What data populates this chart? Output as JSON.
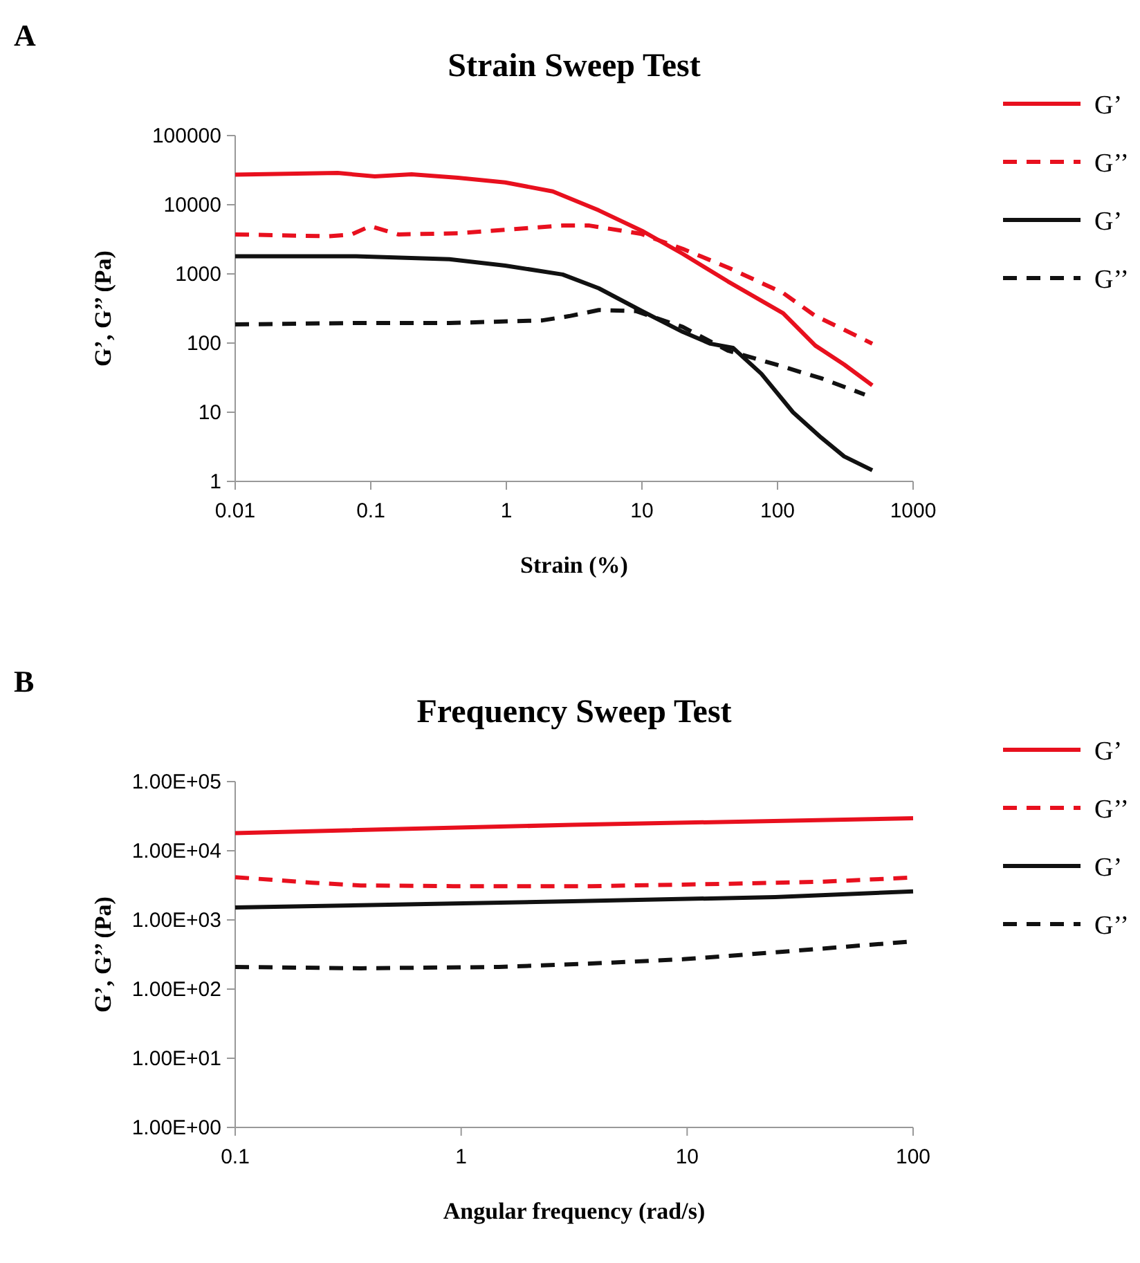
{
  "chart_data": [
    {
      "type": "line",
      "title": "Strain Sweep Test",
      "xlabel": "Strain (%)",
      "ylabel": "G’, G’’ (Pa)",
      "annotations": [
        "A"
      ],
      "log": "xy",
      "legend": "right",
      "grid": false,
      "xlim": [
        0.01,
        1000
      ],
      "xticks": [
        0.01,
        0.1,
        1,
        10,
        100,
        1000
      ],
      "ylim": [
        1,
        100000
      ],
      "yticks": [
        1,
        10,
        100,
        1000,
        10000,
        100000
      ],
      "series": [
        {
          "name": "G’",
          "color": "#e8101e",
          "line_style": "solid",
          "x": [
            0.01,
            0.057,
            0.107,
            0.2,
            0.44,
            0.98,
            2.2,
            4.8,
            10,
            20,
            43,
            110,
            190,
            310,
            500
          ],
          "values": [
            27200,
            28800,
            25700,
            27500,
            24500,
            21000,
            15600,
            8300,
            4200,
            1950,
            780,
            270,
            92,
            49,
            24.5
          ]
        },
        {
          "name": "G’’",
          "color": "#e8101e",
          "line_style": "dashed",
          "x": [
            0.01,
            0.049,
            0.072,
            0.099,
            0.16,
            0.44,
            0.98,
            2.6,
            4.1,
            9.8,
            20,
            43,
            110,
            190,
            310,
            500
          ],
          "values": [
            3720,
            3500,
            3720,
            4900,
            3720,
            3870,
            4340,
            5000,
            5000,
            3800,
            2300,
            1240,
            530,
            247,
            156,
            98
          ]
        },
        {
          "name": "G’",
          "color": "#111111",
          "line_style": "solid",
          "x": [
            0.01,
            0.078,
            0.38,
            0.98,
            2.6,
            4.8,
            10,
            20,
            32,
            47,
            76,
            130,
            210,
            310,
            500
          ],
          "values": [
            1800,
            1800,
            1630,
            1320,
            980,
            620,
            290,
            145,
            98,
            85,
            36,
            10,
            4.3,
            2.3,
            1.45
          ]
        },
        {
          "name": "G’’",
          "color": "#111111",
          "line_style": "dashed",
          "x": [
            0.01,
            0.078,
            0.38,
            1.85,
            2.9,
            4.8,
            9,
            20,
            43,
            97,
            210,
            440
          ],
          "values": [
            186,
            195,
            195,
            213,
            245,
            300,
            290,
            171,
            78,
            49,
            31,
            18
          ]
        }
      ]
    },
    {
      "type": "line",
      "title": "Frequency Sweep Test",
      "xlabel": "Angular frequency (rad/s)",
      "ylabel": "G’, G’’ (Pa)",
      "annotations": [
        "B"
      ],
      "log": "xy",
      "legend": "right",
      "grid": false,
      "xlim": [
        0.1,
        100
      ],
      "xticks": [
        0.1,
        1,
        10,
        100
      ],
      "ylim": [
        1,
        100000
      ],
      "yticks": [
        {
          "value": 1,
          "label": "1.00E+00"
        },
        {
          "value": 10,
          "label": "1.00E+01"
        },
        {
          "value": 100,
          "label": "1.00E+02"
        },
        {
          "value": 1000,
          "label": "1.00E+03"
        },
        {
          "value": 10000,
          "label": "1.00E+04"
        },
        {
          "value": 100000,
          "label": "1.00E+05"
        }
      ],
      "series": [
        {
          "name": "G’",
          "color": "#e8101e",
          "line_style": "solid",
          "x": [
            0.1,
            3.1,
            100
          ],
          "values": [
            18000,
            23700,
            29500
          ]
        },
        {
          "name": "G’’",
          "color": "#e8101e",
          "line_style": "dashed",
          "x": [
            0.1,
            0.22,
            0.36,
            0.92,
            3.76,
            15.4,
            39,
            100
          ],
          "values": [
            4150,
            3450,
            3150,
            3080,
            3080,
            3330,
            3560,
            4100
          ]
        },
        {
          "name": "G’",
          "color": "#111111",
          "line_style": "solid",
          "x": [
            0.1,
            3.1,
            24.5,
            100
          ],
          "values": [
            1510,
            1860,
            2140,
            2590
          ]
        },
        {
          "name": "G’’",
          "color": "#111111",
          "line_style": "dashed",
          "x": [
            0.1,
            0.36,
            1.47,
            3.76,
            9.6,
            24.5,
            100
          ],
          "values": [
            209,
            200,
            209,
            234,
            270,
            340,
            490
          ]
        }
      ]
    }
  ]
}
